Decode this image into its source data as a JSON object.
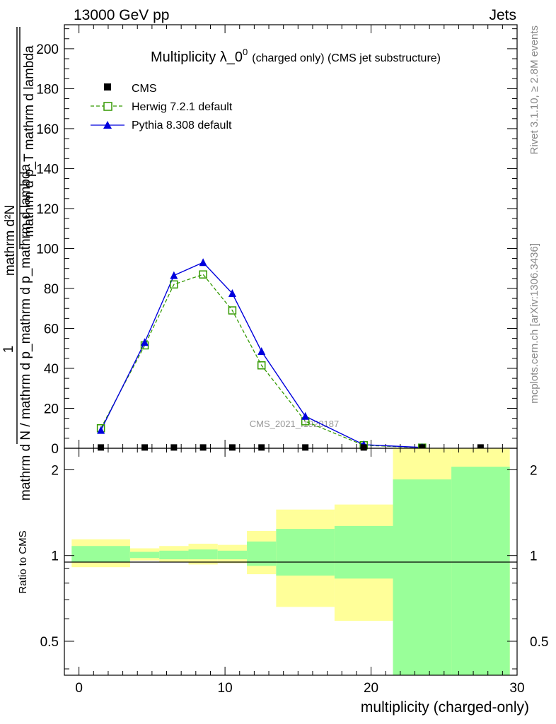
{
  "header": {
    "left": "13000 GeV pp",
    "right": "Jets"
  },
  "side_text": {
    "rivet": "Rivet 3.1.10, ≥ 2.8M events",
    "mcplots": "mcplots.cern.ch [arXiv:1306.3436]"
  },
  "colors": {
    "herwig": "#339900",
    "pythia": "#0000dd",
    "cms": "#000000",
    "band_outer": "#ffff99",
    "band_inner": "#99ff99"
  },
  "chart_data": [
    {
      "type": "line",
      "title_main": "Multiplicity λ_0",
      "title_sup": "0",
      "title_suffix": "(charged only) (CMS jet substructure)",
      "ylabel_top": "1",
      "ylabel_bottom": "mathrm d N / mathrm d p_mathrm d p_mathrm d lambda",
      "ylabel_top_2": "mathrm d²N",
      "ylabel_bottom_2": "mathrm d p_T mathrm d lambda",
      "watermark": "CMS_2021_I1920187",
      "xlim": [
        -1,
        30
      ],
      "ylim": [
        0,
        212
      ],
      "yticks": [
        0,
        20,
        40,
        60,
        80,
        100,
        120,
        140,
        160,
        180,
        200
      ],
      "legend_placement": "top-left",
      "series": [
        {
          "name": "CMS",
          "marker": "square",
          "x": [
            1.5,
            4.5,
            6.5,
            8.5,
            10.5,
            12.5,
            15.5,
            19.5,
            23.5,
            27.5
          ],
          "y": [
            0.4,
            0.4,
            0.4,
            0.4,
            0.4,
            0.4,
            0.4,
            0.4,
            0.4,
            0.4
          ]
        },
        {
          "name": "Herwig 7.2.1 default",
          "marker": "open-square",
          "x": [
            1.5,
            4.5,
            6.5,
            8.5,
            10.5,
            12.5,
            15.5,
            19.5,
            23.5
          ],
          "y": [
            10,
            51.5,
            82,
            87,
            69,
            41.5,
            13.5,
            1.5,
            0.3
          ]
        },
        {
          "name": "Pythia 8.308 default",
          "marker": "filled-triangle",
          "x": [
            1.5,
            4.5,
            6.5,
            8.5,
            10.5,
            12.5,
            15.5,
            19.5,
            23.5
          ],
          "y": [
            9,
            53,
            86.5,
            93,
            77.5,
            48.5,
            16,
            1.8,
            0.4
          ]
        }
      ]
    },
    {
      "type": "area",
      "ylabel": "Ratio to CMS",
      "xlabel": "multiplicity (charged-only)",
      "xlim": [
        -1,
        30
      ],
      "ylim": [
        0.38,
        2.38
      ],
      "log_y": true,
      "xticks": [
        0,
        10,
        20,
        30
      ],
      "yticks": [
        0.5,
        1,
        2
      ],
      "reference_line": 1,
      "bins": [
        {
          "x0": -0.5,
          "x1": 3.5,
          "outer": [
            0.91,
            1.14
          ],
          "inner": [
            0.95,
            1.08
          ]
        },
        {
          "x0": 3.5,
          "x1": 5.5,
          "outer": [
            0.96,
            1.06
          ],
          "inner": [
            0.98,
            1.03
          ]
        },
        {
          "x0": 5.5,
          "x1": 7.5,
          "outer": [
            0.95,
            1.08
          ],
          "inner": [
            0.97,
            1.04
          ]
        },
        {
          "x0": 7.5,
          "x1": 9.5,
          "outer": [
            0.93,
            1.1
          ],
          "inner": [
            0.97,
            1.05
          ]
        },
        {
          "x0": 9.5,
          "x1": 11.5,
          "outer": [
            0.94,
            1.09
          ],
          "inner": [
            0.97,
            1.04
          ]
        },
        {
          "x0": 11.5,
          "x1": 13.5,
          "outer": [
            0.86,
            1.22
          ],
          "inner": [
            0.92,
            1.12
          ]
        },
        {
          "x0": 13.5,
          "x1": 17.5,
          "outer": [
            0.66,
            1.45
          ],
          "inner": [
            0.85,
            1.24
          ]
        },
        {
          "x0": 17.5,
          "x1": 21.5,
          "outer": [
            0.59,
            1.51
          ],
          "inner": [
            0.83,
            1.27
          ]
        },
        {
          "x0": 21.5,
          "x1": 25.5,
          "outer": [
            0.38,
            2.38
          ],
          "inner": [
            0.38,
            1.85
          ]
        },
        {
          "x0": 25.5,
          "x1": 29.5,
          "outer": [
            0.38,
            2.38
          ],
          "inner": [
            0.38,
            2.05
          ]
        }
      ]
    }
  ]
}
